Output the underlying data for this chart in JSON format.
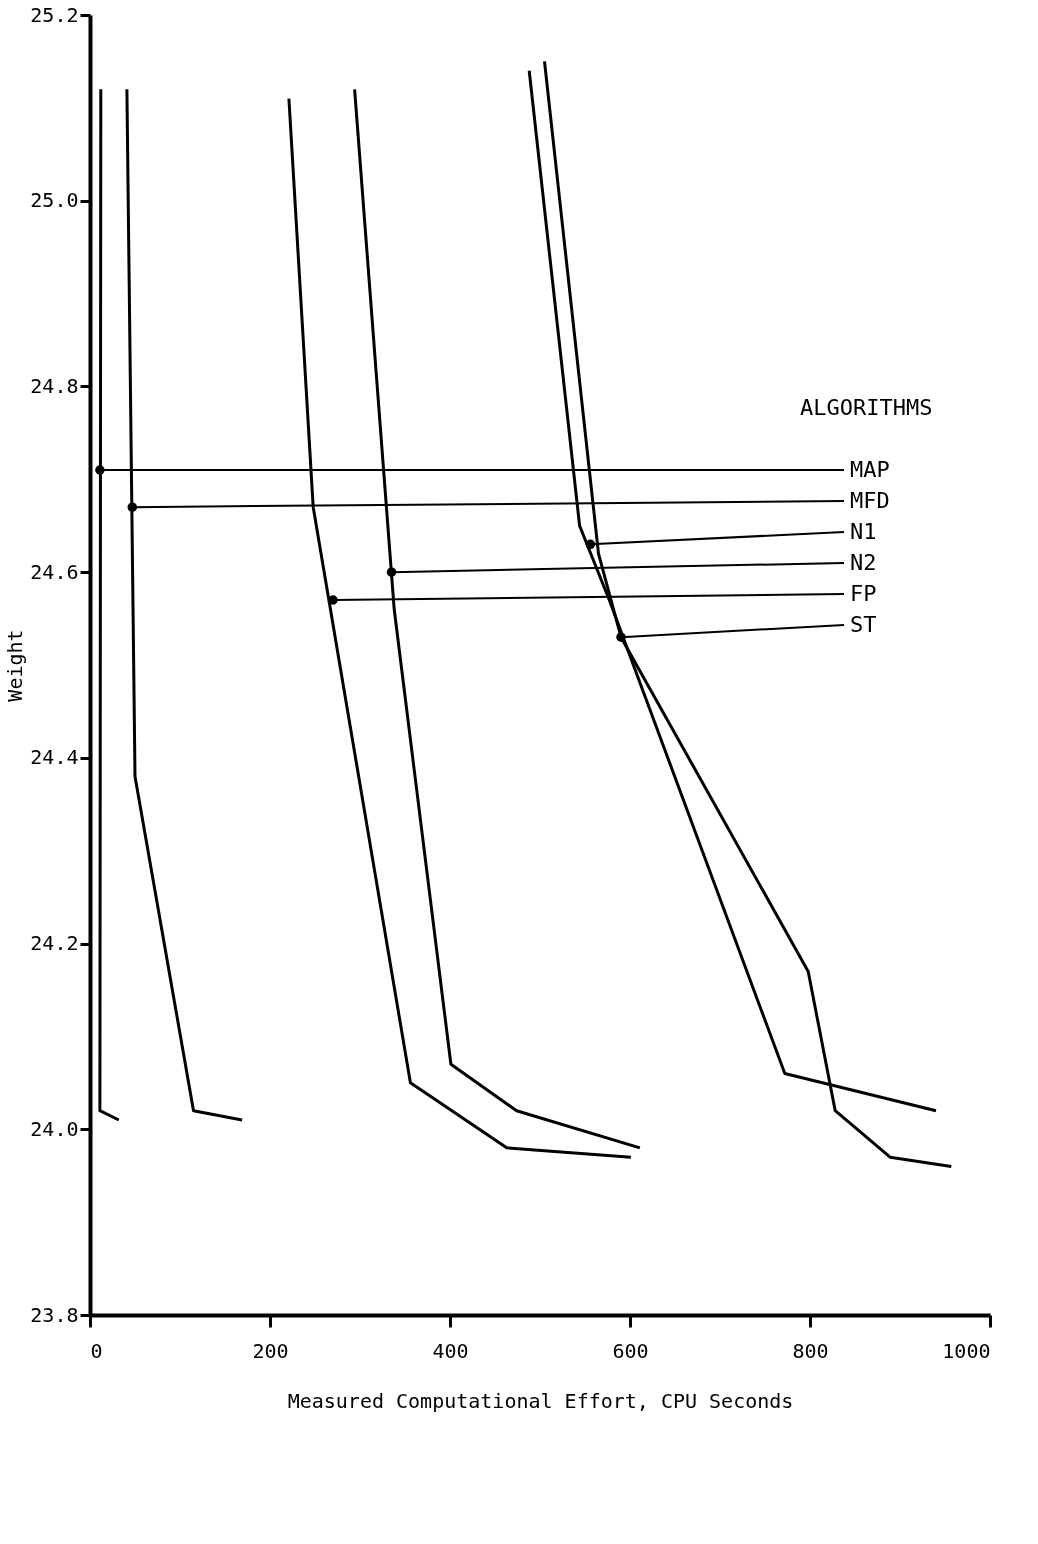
{
  "chart_data": {
    "type": "line",
    "xlabel": "Measured Computational Effort, CPU Seconds",
    "ylabel": "Weight",
    "legend_title": "ALGORITHMS",
    "series": [
      {
        "color": "#000000",
        "x": [
          12,
          11,
          32
        ],
        "values": [
          25.12,
          24.02,
          24.01
        ]
      },
      {
        "color": "#000000",
        "x": [
          41,
          50,
          115,
          169
        ],
        "values": [
          25.12,
          24.38,
          24.02,
          24.01
        ]
      },
      {
        "color": "#000000",
        "x": [
          488,
          544,
          577,
          772,
          940
        ],
        "values": [
          25.14,
          24.65,
          24.57,
          24.06,
          24.02
        ]
      },
      {
        "color": "#000000",
        "x": [
          294,
          338,
          401,
          474,
          611
        ],
        "values": [
          25.12,
          24.56,
          24.07,
          24.02,
          23.98
        ]
      },
      {
        "color": "#000000",
        "x": [
          221,
          248,
          356,
          463,
          601
        ],
        "values": [
          25.11,
          24.67,
          24.05,
          23.98,
          23.97
        ]
      },
      {
        "color": "#000000",
        "x": [
          505,
          565,
          590,
          798,
          828,
          889,
          957
        ],
        "values": [
          25.15,
          24.62,
          24.53,
          24.17,
          24.02,
          23.97,
          23.96
        ]
      }
    ],
    "annotations": [
      {
        "text": "MAP",
        "x": 11,
        "y": 24.71
      },
      {
        "text": "MFD",
        "x": 47,
        "y": 24.67
      },
      {
        "text": "N1",
        "x": 556,
        "y": 24.63
      },
      {
        "text": "N2",
        "x": 335,
        "y": 24.6
      },
      {
        "text": "FP",
        "x": 270,
        "y": 24.57
      },
      {
        "text": "ST",
        "x": 590,
        "y": 24.53
      }
    ],
    "xlim": [
      0,
      1000
    ],
    "xticks": [
      0,
      200,
      400,
      600,
      800,
      1000
    ],
    "ylim": [
      23.8,
      25.2
    ],
    "yticks": [
      {
        "value": 23.8,
        "label": "23.8"
      },
      {
        "value": 24.0,
        "label": "24.0"
      },
      {
        "value": 24.2,
        "label": "24.2"
      },
      {
        "value": 24.4,
        "label": "24.4"
      },
      {
        "value": 24.6,
        "label": "24.6"
      },
      {
        "value": 24.8,
        "label": "24.8"
      },
      {
        "value": 25.0,
        "label": "25.0"
      },
      {
        "value": 25.2,
        "label": "25.2"
      }
    ],
    "grid": false,
    "marker": "none",
    "line_style": "solid"
  }
}
